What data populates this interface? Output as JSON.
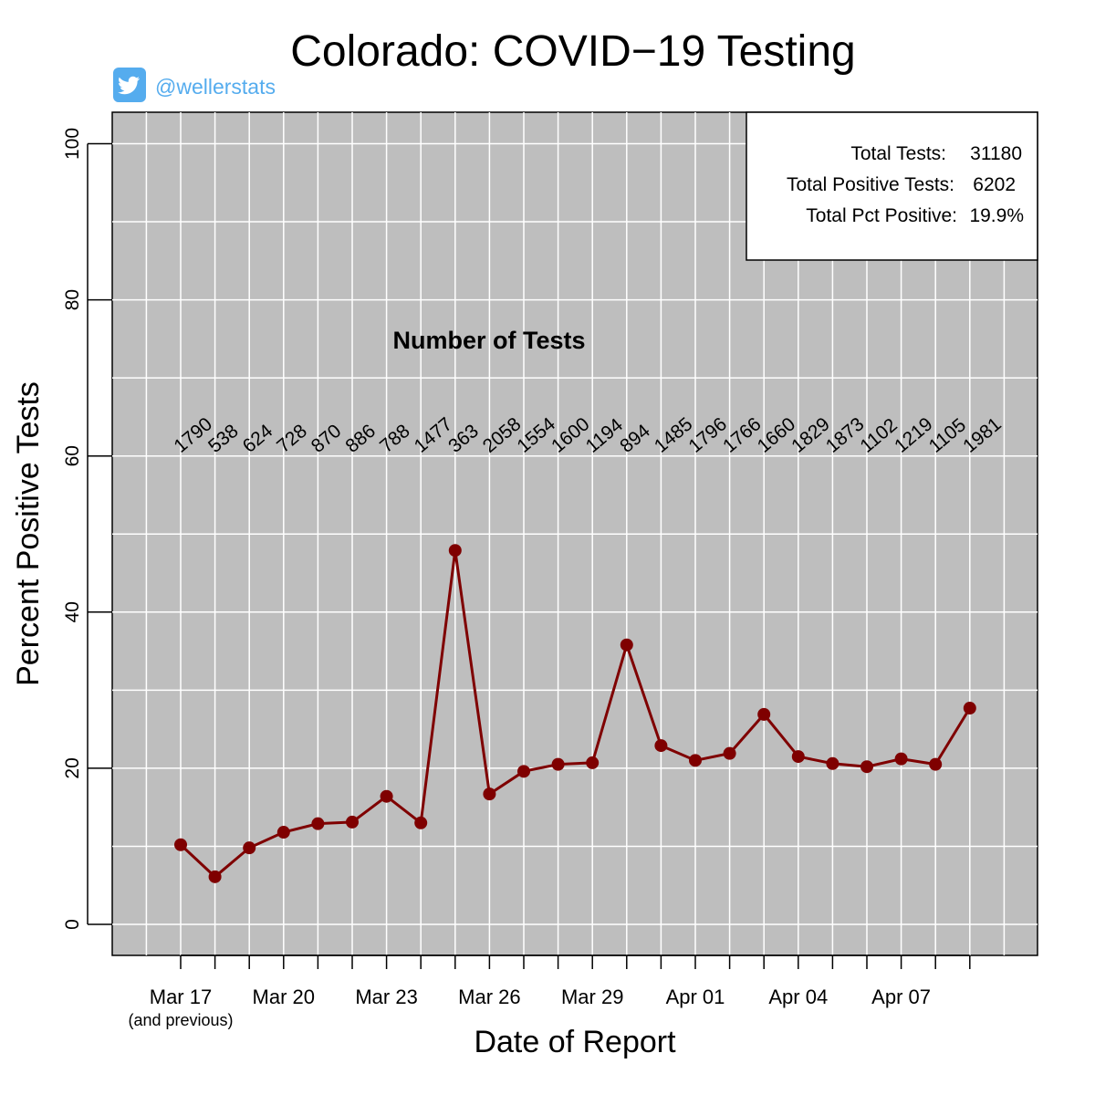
{
  "header": {
    "title": "Colorado: COVID−19 Testing",
    "twitter_handle": "@wellerstats"
  },
  "summary_box": {
    "total_tests_label": "Total Tests:",
    "total_tests_value": "31180",
    "total_positive_label": "Total Positive Tests:",
    "total_positive_value": "6202",
    "total_pct_label": "Total Pct Positive:",
    "total_pct_value": "19.9%"
  },
  "annotation_title": "Number of Tests",
  "x_tick_note": "(and previous)",
  "colors": {
    "panel_background": "#bebebe",
    "grid": "#ffffff",
    "series": "#7f0000",
    "twitter": "#55acee"
  },
  "chart_data": {
    "type": "line",
    "title": "Colorado: COVID−19 Testing",
    "xlabel": "Date of Report",
    "ylabel": "Percent Positive Tests",
    "ylim": [
      0,
      100
    ],
    "yticks": [
      0,
      20,
      40,
      60,
      80,
      100
    ],
    "x_tick_labels": [
      "Mar 17",
      "Mar 20",
      "Mar 23",
      "Mar 26",
      "Mar 29",
      "Apr 01",
      "Apr 04",
      "Apr 07"
    ],
    "x": [
      "Mar 17",
      "Mar 18",
      "Mar 19",
      "Mar 20",
      "Mar 21",
      "Mar 22",
      "Mar 23",
      "Mar 24",
      "Mar 25",
      "Mar 26",
      "Mar 27",
      "Mar 28",
      "Mar 29",
      "Mar 30",
      "Mar 31",
      "Apr 01",
      "Apr 02",
      "Apr 03",
      "Apr 04",
      "Apr 05",
      "Apr 06",
      "Apr 07",
      "Apr 08",
      "Apr 09"
    ],
    "values": [
      10.2,
      6.1,
      9.8,
      11.8,
      12.9,
      13.1,
      16.4,
      13.0,
      47.9,
      16.7,
      19.6,
      20.5,
      20.7,
      35.8,
      22.9,
      21.0,
      21.9,
      26.9,
      21.5,
      20.6,
      20.2,
      21.2,
      20.5,
      27.7
    ],
    "tests": [
      1790,
      538,
      624,
      728,
      870,
      886,
      788,
      1477,
      363,
      2058,
      1554,
      1600,
      1194,
      894,
      1485,
      1796,
      1766,
      1660,
      1829,
      1873,
      1102,
      1219,
      1105,
      1981
    ],
    "grid": true
  }
}
